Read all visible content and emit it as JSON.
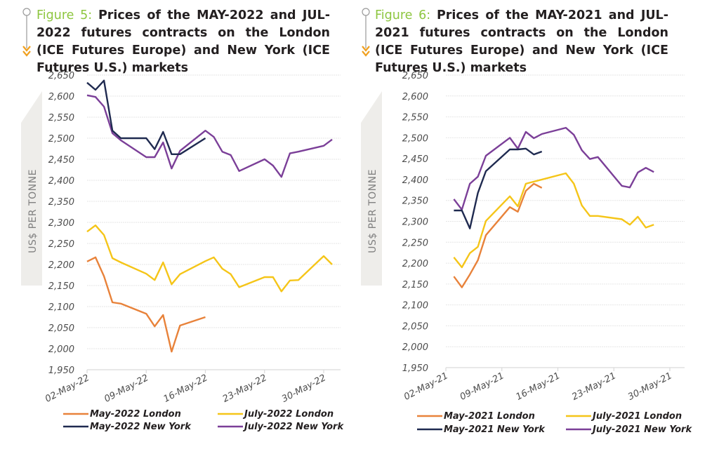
{
  "figures": [
    {
      "fig_label": "Figure 5:",
      "title": "Prices of the MAY-2022 and JUL-2022 futures contracts on the London (ICE Futures Europe) and New York (ICE Futures U.S.) markets"
    },
    {
      "fig_label": "Figure 6:",
      "title": "Prices of the MAY-2021 and JUL-2021 futures contracts on the London (ICE Futures Europe) and New York (ICE Futures U.S.) markets"
    }
  ],
  "icons": {
    "marker": "circle-arrow-down-icon"
  },
  "colors": {
    "may_london": "#e8823a",
    "july_london": "#f5c518",
    "may_newyork": "#1f2a50",
    "july_newyork": "#7b3f98",
    "figure_label": "#8dc63f",
    "grid": "#e6e6e6",
    "banner": "#eeedea"
  },
  "chart_data": [
    {
      "type": "line",
      "title": "Figure 5: Prices of the MAY-2022 and JUL-2022 futures contracts on the London (ICE Futures Europe) and New York (ICE Futures U.S.) markets",
      "xlabel": "",
      "ylabel": "US$ PER  TONNE",
      "ylim": [
        1950,
        2650
      ],
      "yticks": [
        1950,
        2000,
        2050,
        2100,
        2150,
        2200,
        2250,
        2300,
        2350,
        2400,
        2450,
        2500,
        2550,
        2600,
        2650
      ],
      "ytick_labels": [
        "1,950",
        "2,000",
        "2,050",
        "2,100",
        "2,150",
        "2,200",
        "2,250",
        "2,300",
        "2,350",
        "2,400",
        "2,450",
        "2,500",
        "2,550",
        "2,600",
        "2,650"
      ],
      "xlim_day": [
        2,
        32
      ],
      "xticks_day": [
        2,
        9,
        16,
        23,
        30
      ],
      "xtick_labels": [
        "02-May-22",
        "09-May-22",
        "16-May-22",
        "23-May-22",
        "30-May-22"
      ],
      "grid": true,
      "legend_position": "bottom",
      "series": [
        {
          "name": "May-2022 London",
          "color_key": "may_london",
          "x": [
            2,
            3,
            4,
            5,
            6,
            9,
            10,
            11,
            12,
            13,
            16
          ],
          "values": [
            2207,
            2217,
            2172,
            2110,
            2107,
            2083,
            2053,
            2080,
            1993,
            2055,
            2075
          ]
        },
        {
          "name": "July-2022 London",
          "color_key": "july_london",
          "x": [
            2,
            3,
            4,
            5,
            6,
            9,
            10,
            11,
            12,
            13,
            16,
            17,
            18,
            19,
            20,
            23,
            24,
            25,
            26,
            27,
            30,
            31
          ],
          "values": [
            2278,
            2293,
            2270,
            2215,
            2205,
            2178,
            2163,
            2205,
            2153,
            2177,
            2208,
            2217,
            2190,
            2177,
            2146,
            2170,
            2170,
            2136,
            2162,
            2163,
            2220,
            2200
          ]
        },
        {
          "name": "May-2022 New York",
          "color_key": "may_newyork",
          "x": [
            2,
            3,
            4,
            5,
            6,
            9,
            10,
            11,
            12,
            13,
            16
          ],
          "values": [
            2632,
            2615,
            2637,
            2518,
            2500,
            2500,
            2474,
            2515,
            2462,
            2462,
            2500
          ]
        },
        {
          "name": "July-2022 New York",
          "color_key": "july_newyork",
          "x": [
            2,
            3,
            4,
            5,
            6,
            9,
            10,
            11,
            12,
            13,
            16,
            17,
            18,
            19,
            20,
            23,
            24,
            25,
            26,
            27,
            30,
            31
          ],
          "values": [
            2602,
            2598,
            2575,
            2512,
            2495,
            2455,
            2455,
            2490,
            2428,
            2470,
            2518,
            2503,
            2468,
            2460,
            2422,
            2450,
            2435,
            2408,
            2464,
            2468,
            2482,
            2497
          ]
        }
      ]
    },
    {
      "type": "line",
      "title": "Figure 6: Prices of the MAY-2021 and JUL-2021 futures contracts on the London (ICE Futures Europe) and New York (ICE Futures U.S.) markets",
      "xlabel": "",
      "ylabel": "US$ PER  TONNE",
      "ylim": [
        1950,
        2650
      ],
      "yticks": [
        1950,
        2000,
        2050,
        2100,
        2150,
        2200,
        2250,
        2300,
        2350,
        2400,
        2450,
        2500,
        2550,
        2600,
        2650
      ],
      "ytick_labels": [
        "1,950",
        "2,000",
        "2,050",
        "2,100",
        "2,150",
        "2,200",
        "2,250",
        "2,300",
        "2,350",
        "2,400",
        "2,450",
        "2,500",
        "2,550",
        "2,600",
        "2,650"
      ],
      "xlim_day": [
        2,
        31.8
      ],
      "xticks_day": [
        2,
        9,
        16,
        23,
        30
      ],
      "xtick_labels": [
        "02-May-21",
        "09-May-21",
        "16-May-21",
        "23-May-21",
        "30-May-21"
      ],
      "grid": true,
      "legend_position": "bottom",
      "series": [
        {
          "name": "May-2021 London",
          "color_key": "may_london",
          "x": [
            3,
            4,
            5,
            6,
            7,
            10,
            11,
            12,
            13,
            14
          ],
          "values": [
            2168,
            2142,
            2173,
            2207,
            2267,
            2334,
            2323,
            2373,
            2390,
            2380
          ]
        },
        {
          "name": "July-2021 London",
          "color_key": "july_london",
          "x": [
            3,
            4,
            5,
            6,
            7,
            10,
            11,
            12,
            13,
            17,
            18,
            19,
            20,
            21,
            24,
            25,
            26,
            27,
            28
          ],
          "values": [
            2214,
            2190,
            2224,
            2239,
            2301,
            2360,
            2336,
            2390,
            2395,
            2415,
            2390,
            2338,
            2313,
            2313,
            2305,
            2292,
            2311,
            2285,
            2292
          ]
        },
        {
          "name": "May-2021 New York",
          "color_key": "may_newyork",
          "x": [
            3,
            4,
            5,
            6,
            7,
            10,
            11,
            12,
            13,
            14
          ],
          "values": [
            2326,
            2326,
            2283,
            2368,
            2420,
            2472,
            2472,
            2474,
            2460,
            2467
          ]
        },
        {
          "name": "July-2021 New York",
          "color_key": "july_newyork",
          "x": [
            3,
            4,
            5,
            6,
            7,
            10,
            11,
            12,
            13,
            14,
            17,
            18,
            19,
            20,
            21,
            24,
            25,
            26,
            27,
            28
          ],
          "values": [
            2353,
            2328,
            2390,
            2407,
            2457,
            2500,
            2474,
            2514,
            2499,
            2509,
            2524,
            2507,
            2470,
            2449,
            2454,
            2385,
            2381,
            2417,
            2428,
            2418
          ]
        }
      ]
    }
  ]
}
